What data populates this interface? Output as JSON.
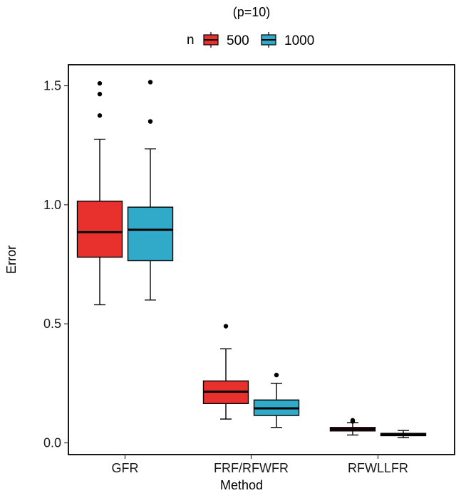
{
  "chart_data": {
    "type": "boxplot",
    "title": "(p=10)",
    "xlabel": "Method",
    "ylabel": "Error",
    "ylim": [
      -0.05,
      1.6
    ],
    "yticks": [
      0.0,
      0.5,
      1.0,
      1.5
    ],
    "ytick_labels": [
      "0.0",
      "0.5",
      "1.0",
      "1.5"
    ],
    "categories": [
      "GFR",
      "FRF/RFWFR",
      "RFWLLFR"
    ],
    "legend": {
      "title": "n",
      "position": "top"
    },
    "grid": false,
    "series": [
      {
        "name": "500",
        "color": "#e8302c",
        "boxes": [
          {
            "whisker_low": 0.58,
            "q1": 0.78,
            "median": 0.885,
            "q3": 1.015,
            "whisker_high": 1.275,
            "outliers": [
              1.375,
              1.465,
              1.51
            ]
          },
          {
            "whisker_low": 0.1,
            "q1": 0.165,
            "median": 0.215,
            "q3": 0.26,
            "whisker_high": 0.395,
            "outliers": [
              0.49
            ]
          },
          {
            "whisker_low": 0.033,
            "q1": 0.05,
            "median": 0.057,
            "q3": 0.065,
            "whisker_high": 0.085,
            "outliers": [
              0.09,
              0.095
            ]
          }
        ]
      },
      {
        "name": "1000",
        "color": "#30aac8",
        "boxes": [
          {
            "whisker_low": 0.6,
            "q1": 0.765,
            "median": 0.895,
            "q3": 0.99,
            "whisker_high": 1.235,
            "outliers": [
              1.35,
              1.515
            ]
          },
          {
            "whisker_low": 0.065,
            "q1": 0.115,
            "median": 0.145,
            "q3": 0.18,
            "whisker_high": 0.25,
            "outliers": [
              0.285
            ]
          },
          {
            "whisker_low": 0.022,
            "q1": 0.03,
            "median": 0.035,
            "q3": 0.04,
            "whisker_high": 0.052,
            "outliers": []
          }
        ]
      }
    ]
  }
}
